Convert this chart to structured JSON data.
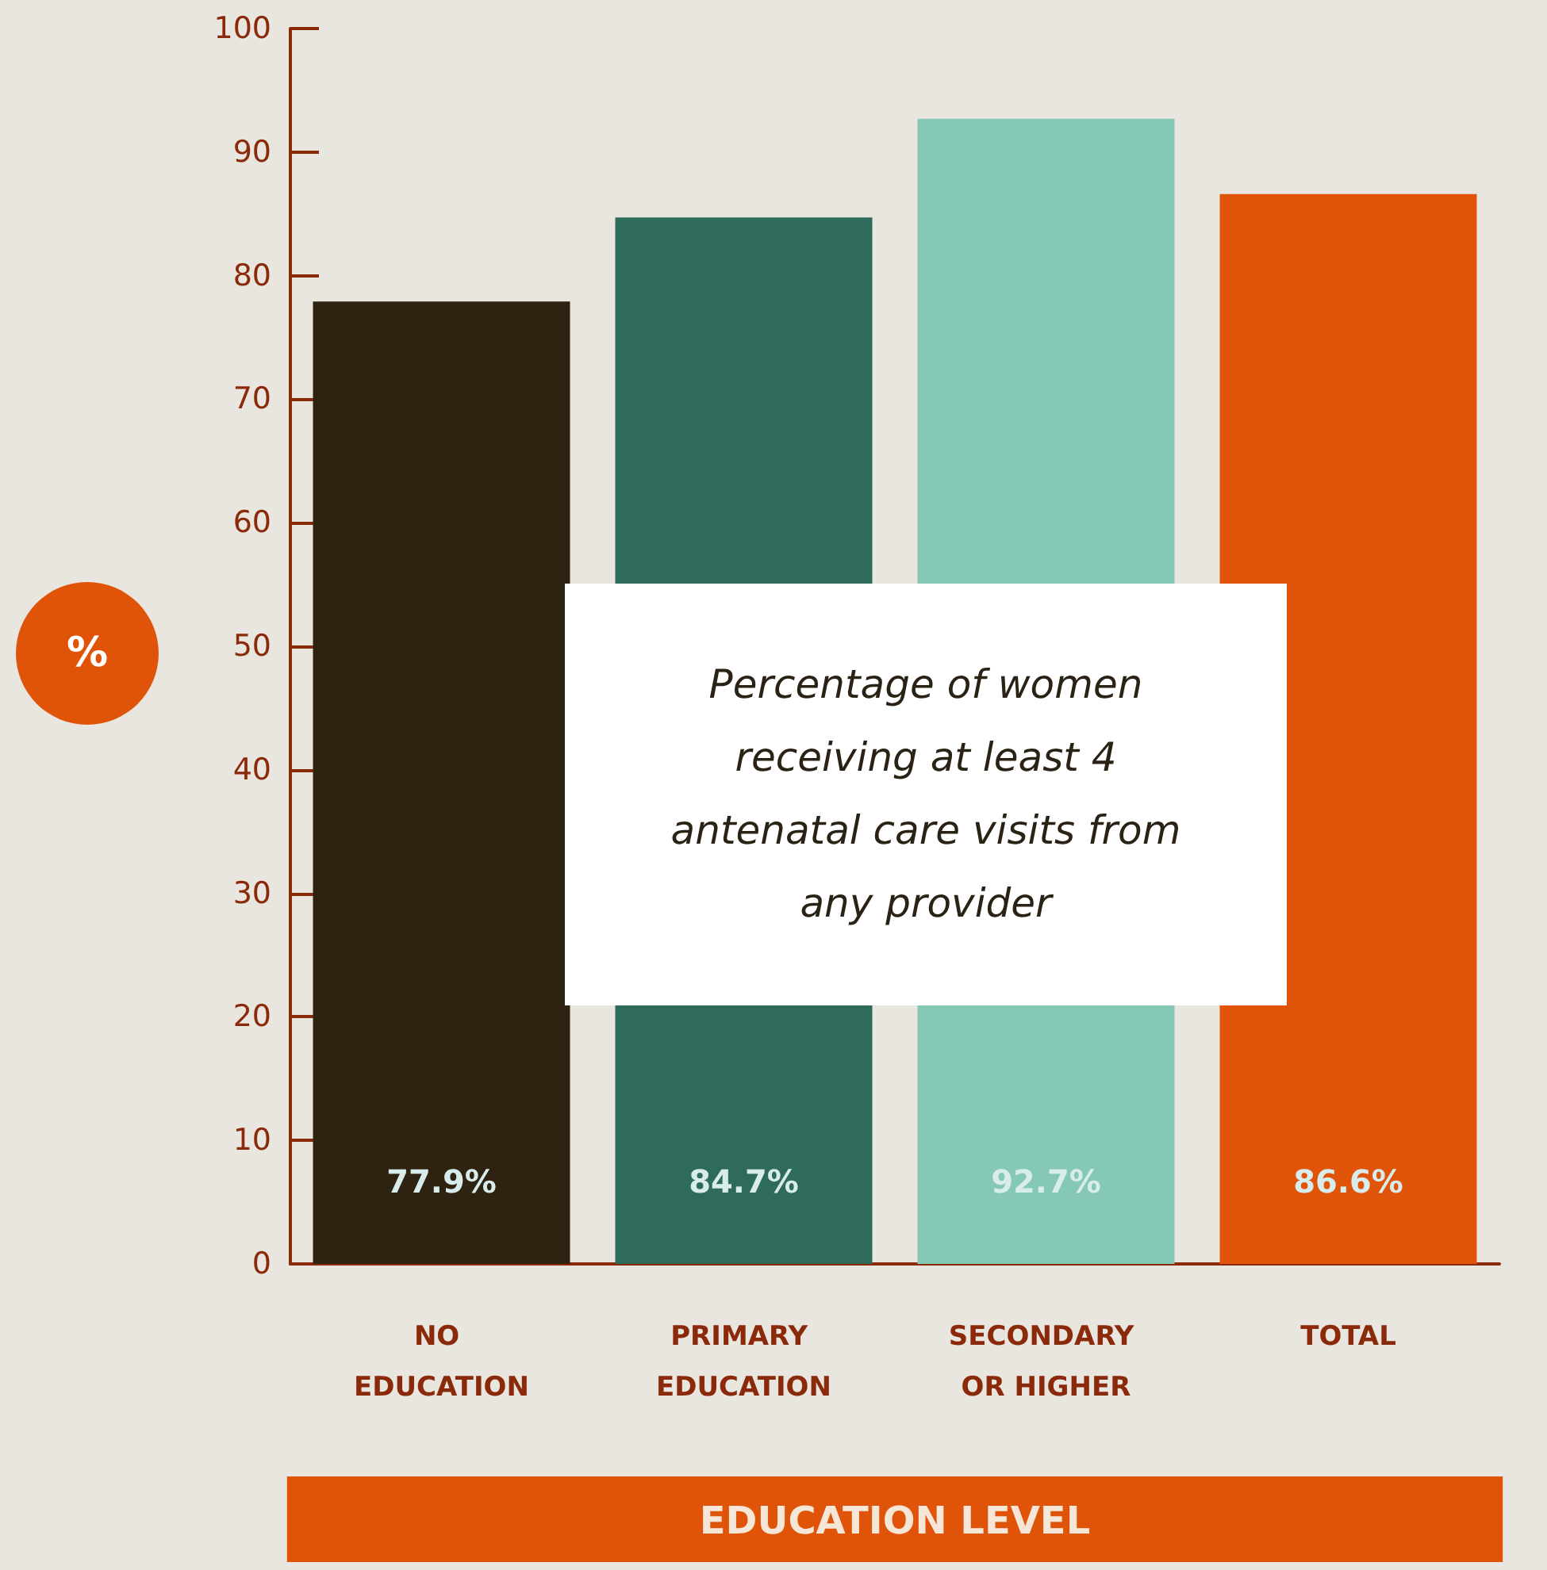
{
  "chart_data": {
    "type": "bar",
    "title": "Percentage of women receiving at least 4 antenatal care visits from any provider",
    "xlabel": "EDUCATION LEVEL",
    "ylabel": "%",
    "categories": [
      "NO EDUCATION",
      "PRIMARY EDUCATION",
      "SECONDARY OR HIGHER",
      "TOTAL"
    ],
    "values": [
      77.9,
      84.7,
      92.7,
      86.6
    ],
    "colors": [
      "#2e2210",
      "#2f6b5a",
      "#86c8b6",
      "#e0540a"
    ],
    "value_labels": [
      "77.9%",
      "84.7%",
      "92.7%",
      "86.6%"
    ],
    "ylim": [
      0,
      100
    ],
    "yticks": [
      0,
      10,
      20,
      30,
      40,
      50,
      60,
      70,
      80,
      90,
      100
    ],
    "grid": false
  }
}
